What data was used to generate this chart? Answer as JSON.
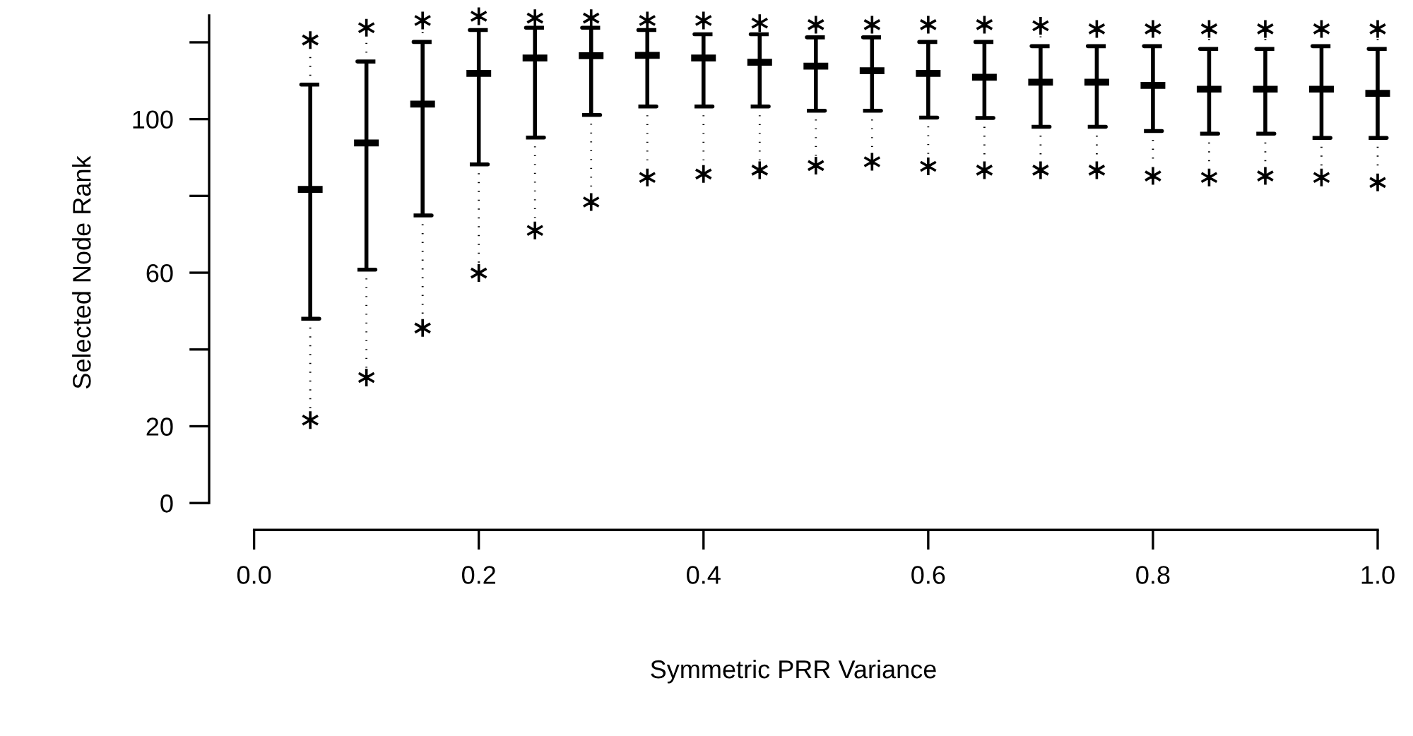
{
  "chart_data": {
    "type": "box",
    "xlabel": "Symmetric PRR Variance",
    "ylabel": "Selected Node Rank",
    "marker": "star",
    "color": "#000000",
    "x": [
      0.05,
      0.1,
      0.15,
      0.2,
      0.25,
      0.3,
      0.35,
      0.4,
      0.45,
      0.5,
      0.55,
      0.6,
      0.65,
      0.7,
      0.75,
      0.8,
      0.85,
      0.9,
      0.95,
      1.0
    ],
    "boxes": [
      {
        "low": 24.1,
        "q1": 48,
        "median": 81.7,
        "q3": 109,
        "high": 118.1,
        "outliers": [
          21.6,
          120.6
        ]
      },
      {
        "low": 35.2,
        "q1": 60.8,
        "median": 93.8,
        "q3": 115,
        "high": 121.3,
        "outliers": [
          32.7,
          123.8
        ]
      },
      {
        "low": 48.1,
        "q1": 74.9,
        "median": 103.9,
        "q3": 120.1,
        "high": 123.2,
        "outliers": [
          45.6,
          125.7
        ]
      },
      {
        "low": 62.4,
        "q1": 88.2,
        "median": 111.9,
        "q3": 123.2,
        "high": 124.3,
        "outliers": [
          59.9,
          126.8
        ]
      },
      {
        "low": 73.5,
        "q1": 95.2,
        "median": 115.9,
        "q3": 123.8,
        "high": 123.8,
        "outliers": [
          71,
          126.3
        ]
      },
      {
        "low": 80.9,
        "q1": 101.1,
        "median": 116.5,
        "q3": 123.8,
        "high": 123.8,
        "outliers": [
          78.4,
          126.3
        ]
      },
      {
        "low": 87.3,
        "q1": 103.3,
        "median": 116.6,
        "q3": 123.2,
        "high": 123.2,
        "outliers": [
          84.8,
          125.7
        ]
      },
      {
        "low": 88.2,
        "q1": 103.3,
        "median": 115.9,
        "q3": 122.1,
        "high": 123.2,
        "outliers": [
          85.7,
          125.7
        ]
      },
      {
        "low": 89.2,
        "q1": 103.3,
        "median": 114.8,
        "q3": 122.1,
        "high": 122.5,
        "outliers": [
          86.7,
          125
        ]
      },
      {
        "low": 90.4,
        "q1": 102.2,
        "median": 113.8,
        "q3": 121.3,
        "high": 122.1,
        "outliers": [
          87.9,
          124.6
        ]
      },
      {
        "low": 91.4,
        "q1": 102.2,
        "median": 112.6,
        "q3": 121.3,
        "high": 122.1,
        "outliers": [
          88.9,
          124.6
        ]
      },
      {
        "low": 90.2,
        "q1": 100.4,
        "median": 111.9,
        "q3": 120.1,
        "high": 122.1,
        "outliers": [
          87.7,
          124.6
        ]
      },
      {
        "low": 89.2,
        "q1": 100.3,
        "median": 110.9,
        "q3": 120.1,
        "high": 122.1,
        "outliers": [
          86.7,
          124.6
        ]
      },
      {
        "low": 89.2,
        "q1": 98,
        "median": 109.6,
        "q3": 119,
        "high": 121.8,
        "outliers": [
          86.7,
          124.3
        ]
      },
      {
        "low": 89.2,
        "q1": 98,
        "median": 109.6,
        "q3": 119,
        "high": 121,
        "outliers": [
          86.7,
          123.5
        ]
      },
      {
        "low": 87.7,
        "q1": 96.9,
        "median": 108.8,
        "q3": 119,
        "high": 121,
        "outliers": [
          85.2,
          123.5
        ]
      },
      {
        "low": 87.3,
        "q1": 96.2,
        "median": 107.8,
        "q3": 118.3,
        "high": 121,
        "outliers": [
          84.8,
          123.5
        ]
      },
      {
        "low": 87.7,
        "q1": 96.2,
        "median": 107.8,
        "q3": 118.3,
        "high": 121,
        "outliers": [
          85.2,
          123.5
        ]
      },
      {
        "low": 87.3,
        "q1": 95.1,
        "median": 107.8,
        "q3": 119,
        "high": 121,
        "outliers": [
          84.8,
          123.5
        ]
      },
      {
        "low": 86,
        "q1": 95.1,
        "median": 106.7,
        "q3": 118.3,
        "high": 121,
        "outliers": [
          83.5,
          123.5
        ]
      }
    ],
    "xlim": [
      -0.04,
      1.0
    ],
    "ylim": [
      -7,
      127
    ],
    "xticks": [
      {
        "value": 0,
        "label": "0.0"
      },
      {
        "value": 0.2,
        "label": "0.2"
      },
      {
        "value": 0.4,
        "label": "0.4"
      },
      {
        "value": 0.6,
        "label": "0.6"
      },
      {
        "value": 0.8,
        "label": "0.8"
      },
      {
        "value": 1.0,
        "label": "1.0"
      }
    ],
    "yticks": [
      0,
      20,
      {
        "value": 40,
        "label": null
      },
      60,
      {
        "value": 80,
        "label": null
      },
      100,
      {
        "value": 120,
        "label": null
      }
    ]
  }
}
